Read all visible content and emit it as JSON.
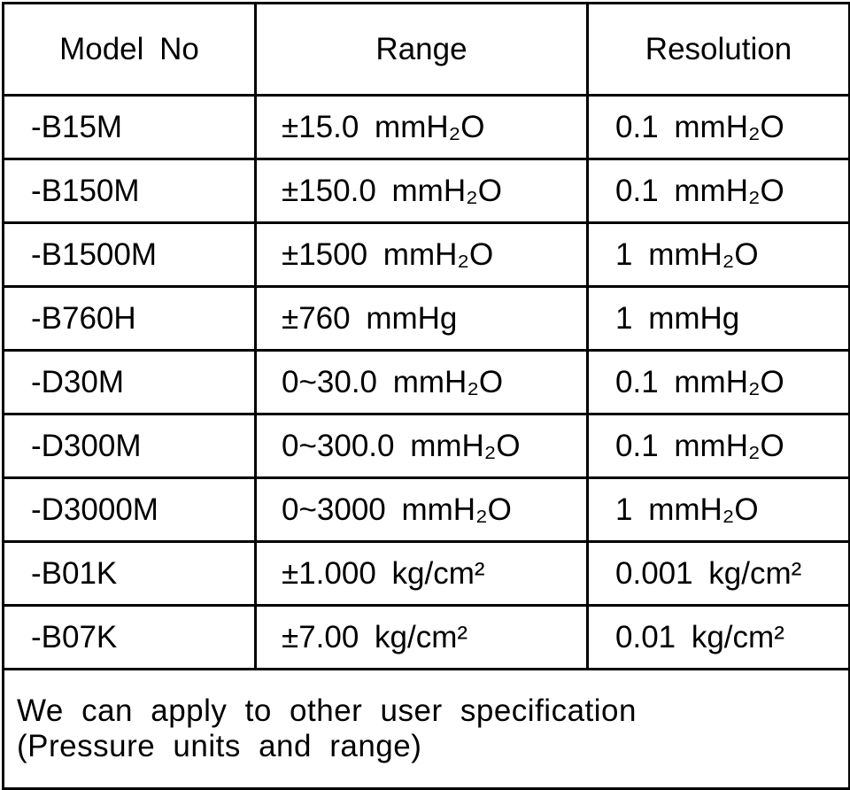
{
  "table": {
    "header": [
      "Model No",
      "Range",
      "Resolution"
    ],
    "rows": [
      [
        "-B15M",
        "±15.0 mmH₂O",
        "0.1 mmH₂O"
      ],
      [
        "-B150M",
        "±150.0 mmH₂O",
        "0.1 mmH₂O"
      ],
      [
        "-B1500M",
        "±1500 mmH₂O",
        "1 mmH₂O"
      ],
      [
        "-B760H",
        "±760 mmHg",
        "1 mmHg"
      ],
      [
        "-D30M",
        "0~30.0 mmH₂O",
        "0.1 mmH₂O"
      ],
      [
        "-D300M",
        "0~300.0 mmH₂O",
        "0.1 mmH₂O"
      ],
      [
        "-D3000M",
        "0~3000 mmH₂O",
        "1 mmH₂O"
      ],
      [
        "-B01K",
        "±1.000 kg/cm²",
        "0.001 kg/cm²"
      ],
      [
        "-B07K",
        "±7.00 kg/cm²",
        "0.01 kg/cm²"
      ]
    ],
    "footer": [
      "We can apply to other user specification",
      "(Pressure units and range)"
    ]
  }
}
